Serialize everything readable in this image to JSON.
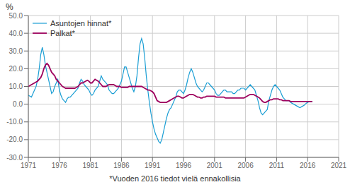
{
  "chart_data": {
    "type": "line",
    "ylabel": "%",
    "annotations": [
      "*Vuoden 2016 tiedot vielä ennakollisia"
    ],
    "legend": "upper left",
    "grid": true,
    "xlim": [
      1971,
      2021
    ],
    "xticks": [
      1971,
      1976,
      1981,
      1986,
      1991,
      1996,
      2001,
      2006,
      2011,
      2016,
      2021
    ],
    "ylim": [
      -30.0,
      50.0
    ],
    "yticks": [
      {
        "value": -30.0,
        "label": "-30.0"
      },
      {
        "value": -20.0,
        "label": "-20.0"
      },
      {
        "value": -10.0,
        "label": "-10.0"
      },
      {
        "value": 0.0,
        "label": "0.0"
      },
      {
        "value": 10.0,
        "label": "10.0"
      },
      {
        "value": 20.0,
        "label": "20.0"
      },
      {
        "value": 30.0,
        "label": "30.0"
      },
      {
        "value": 40.0,
        "label": "40.0"
      },
      {
        "value": 50.0,
        "label": "50.0"
      }
    ],
    "x": [
      1971.0,
      1971.25,
      1971.5,
      1971.75,
      1972.0,
      1972.25,
      1972.5,
      1972.75,
      1973.0,
      1973.25,
      1973.5,
      1973.75,
      1974.0,
      1974.25,
      1974.5,
      1974.75,
      1975.0,
      1975.25,
      1975.5,
      1975.75,
      1976.0,
      1976.25,
      1976.5,
      1976.75,
      1977.0,
      1977.25,
      1977.5,
      1977.75,
      1978.0,
      1978.25,
      1978.5,
      1978.75,
      1979.0,
      1979.25,
      1979.5,
      1979.75,
      1980.0,
      1980.25,
      1980.5,
      1980.75,
      1981.0,
      1981.25,
      1981.5,
      1981.75,
      1982.0,
      1982.25,
      1982.5,
      1982.75,
      1983.0,
      1983.25,
      1983.5,
      1983.75,
      1984.0,
      1984.25,
      1984.5,
      1984.75,
      1985.0,
      1985.25,
      1985.5,
      1985.75,
      1986.0,
      1986.25,
      1986.5,
      1986.75,
      1987.0,
      1987.25,
      1987.5,
      1987.75,
      1988.0,
      1988.25,
      1988.5,
      1988.75,
      1989.0,
      1989.25,
      1989.5,
      1989.75,
      1990.0,
      1990.25,
      1990.5,
      1990.75,
      1991.0,
      1991.25,
      1991.5,
      1991.75,
      1992.0,
      1992.25,
      1992.5,
      1992.75,
      1993.0,
      1993.25,
      1993.5,
      1993.75,
      1994.0,
      1994.25,
      1994.5,
      1994.75,
      1995.0,
      1995.25,
      1995.5,
      1995.75,
      1996.0,
      1996.25,
      1996.5,
      1996.75,
      1997.0,
      1997.25,
      1997.5,
      1997.75,
      1998.0,
      1998.25,
      1998.5,
      1998.75,
      1999.0,
      1999.25,
      1999.5,
      1999.75,
      2000.0,
      2000.25,
      2000.5,
      2000.75,
      2001.0,
      2001.25,
      2001.5,
      2001.75,
      2002.0,
      2002.25,
      2002.5,
      2002.75,
      2003.0,
      2003.25,
      2003.5,
      2003.75,
      2004.0,
      2004.25,
      2004.5,
      2004.75,
      2005.0,
      2005.25,
      2005.5,
      2005.75,
      2006.0,
      2006.25,
      2006.5,
      2006.75,
      2007.0,
      2007.25,
      2007.5,
      2007.75,
      2008.0,
      2008.25,
      2008.5,
      2008.75,
      2009.0,
      2009.25,
      2009.5,
      2009.75,
      2010.0,
      2010.25,
      2010.5,
      2010.75,
      2011.0,
      2011.25,
      2011.5,
      2011.75,
      2012.0,
      2012.25,
      2012.5,
      2012.75,
      2013.0,
      2013.25,
      2013.5,
      2013.75,
      2014.0,
      2014.25,
      2014.5,
      2014.75,
      2015.0,
      2015.25,
      2015.5,
      2015.75,
      2016.0,
      2016.25,
      2016.5,
      2016.75
    ],
    "series": [
      {
        "name": "Asuntojen hinnat*",
        "color": "#1a9ed4",
        "values": [
          5.0,
          4.5,
          4.0,
          6.0,
          8.0,
          10.0,
          14.0,
          20.0,
          28.0,
          32.0,
          28.0,
          22.0,
          18.0,
          14.0,
          10.0,
          6.0,
          7.0,
          10.0,
          12.0,
          14.0,
          8.0,
          5.0,
          3.0,
          2.0,
          1.0,
          3.0,
          4.0,
          4.0,
          5.0,
          6.0,
          7.0,
          8.0,
          9.0,
          12.0,
          14.0,
          13.0,
          11.0,
          10.0,
          9.0,
          8.0,
          6.0,
          5.0,
          6.0,
          8.0,
          9.0,
          10.0,
          13.0,
          16.0,
          14.0,
          13.0,
          12.0,
          11.0,
          8.0,
          7.0,
          6.0,
          6.0,
          7.0,
          8.0,
          9.0,
          11.0,
          13.0,
          17.0,
          21.0,
          21.0,
          18.0,
          15.0,
          12.0,
          9.0,
          7.0,
          10.0,
          16.0,
          26.0,
          34.0,
          37.0,
          34.0,
          26.0,
          16.0,
          8.0,
          1.0,
          -5.0,
          -10.0,
          -14.0,
          -17.0,
          -19.0,
          -21.0,
          -22.0,
          -20.0,
          -16.0,
          -12.0,
          -8.0,
          -5.0,
          -3.0,
          -2.0,
          0.0,
          2.0,
          4.0,
          7.0,
          8.0,
          8.0,
          7.0,
          6.0,
          8.0,
          11.0,
          15.0,
          18.0,
          20.0,
          18.0,
          15.0,
          12.0,
          10.0,
          9.0,
          8.0,
          7.0,
          8.0,
          10.0,
          12.0,
          12.0,
          11.0,
          10.0,
          9.0,
          8.0,
          6.0,
          5.0,
          5.0,
          6.0,
          7.0,
          8.0,
          8.0,
          7.0,
          7.0,
          7.0,
          7.0,
          6.0,
          6.0,
          7.0,
          8.0,
          8.0,
          9.0,
          9.0,
          9.0,
          8.0,
          9.0,
          10.0,
          11.0,
          10.0,
          9.0,
          8.0,
          5.0,
          2.0,
          -2.0,
          -5.0,
          -6.0,
          -5.0,
          -4.0,
          -3.0,
          2.0,
          5.0,
          8.0,
          10.0,
          11.0,
          10.0,
          9.0,
          8.0,
          6.0,
          4.0,
          3.0,
          2.0,
          2.0,
          2.0,
          1.0,
          0.5,
          0.0,
          -0.5,
          -1.0,
          -1.5,
          -2.0,
          -1.5,
          -1.0,
          -0.5,
          0.5,
          1.0,
          1.5,
          1.5,
          1.5
        ]
      },
      {
        "name": "Palkat*",
        "color": "#9e005d",
        "values": [
          10.0,
          10.5,
          11.0,
          11.5,
          12.0,
          12.5,
          13.0,
          14.0,
          15.0,
          17.0,
          20.0,
          22.0,
          23.0,
          22.0,
          20.0,
          18.0,
          17.0,
          16.0,
          14.0,
          13.0,
          12.0,
          11.0,
          10.0,
          9.5,
          9.0,
          9.0,
          9.0,
          9.0,
          9.0,
          9.0,
          9.0,
          9.5,
          10.0,
          11.0,
          12.0,
          12.0,
          12.5,
          13.0,
          13.5,
          13.0,
          12.0,
          12.0,
          13.0,
          14.0,
          13.5,
          13.0,
          12.0,
          11.0,
          10.0,
          10.0,
          10.0,
          10.5,
          11.0,
          11.0,
          11.0,
          11.0,
          10.5,
          10.0,
          10.0,
          10.0,
          9.5,
          9.5,
          9.5,
          9.5,
          9.5,
          10.0,
          10.0,
          10.0,
          10.0,
          10.0,
          10.0,
          10.0,
          10.0,
          10.0,
          9.5,
          9.0,
          8.5,
          8.0,
          8.0,
          7.5,
          7.0,
          6.0,
          4.0,
          2.0,
          1.5,
          1.0,
          1.0,
          1.0,
          1.0,
          1.0,
          1.5,
          2.0,
          2.5,
          3.0,
          3.5,
          4.0,
          4.5,
          4.5,
          4.0,
          3.5,
          3.5,
          4.0,
          4.5,
          5.0,
          5.5,
          5.5,
          5.5,
          5.0,
          4.5,
          4.0,
          4.0,
          3.5,
          3.5,
          4.0,
          4.0,
          4.5,
          4.5,
          4.5,
          4.5,
          4.5,
          4.5,
          4.0,
          4.0,
          4.0,
          4.0,
          4.0,
          4.0,
          3.5,
          3.5,
          3.5,
          3.5,
          3.5,
          3.5,
          3.5,
          3.5,
          3.5,
          3.5,
          3.5,
          3.5,
          3.5,
          4.0,
          4.5,
          5.0,
          5.5,
          5.5,
          5.5,
          5.0,
          4.5,
          4.0,
          3.5,
          2.5,
          1.5,
          1.0,
          1.0,
          1.5,
          2.0,
          2.5,
          2.5,
          3.0,
          3.0,
          3.0,
          3.0,
          2.5,
          2.5,
          2.0,
          2.0,
          2.0,
          2.0,
          2.0,
          1.5,
          1.5,
          1.5,
          1.5,
          1.5,
          1.5,
          1.5,
          1.5,
          1.5,
          1.5,
          1.5,
          1.5,
          1.5,
          1.5,
          1.5
        ]
      }
    ]
  }
}
